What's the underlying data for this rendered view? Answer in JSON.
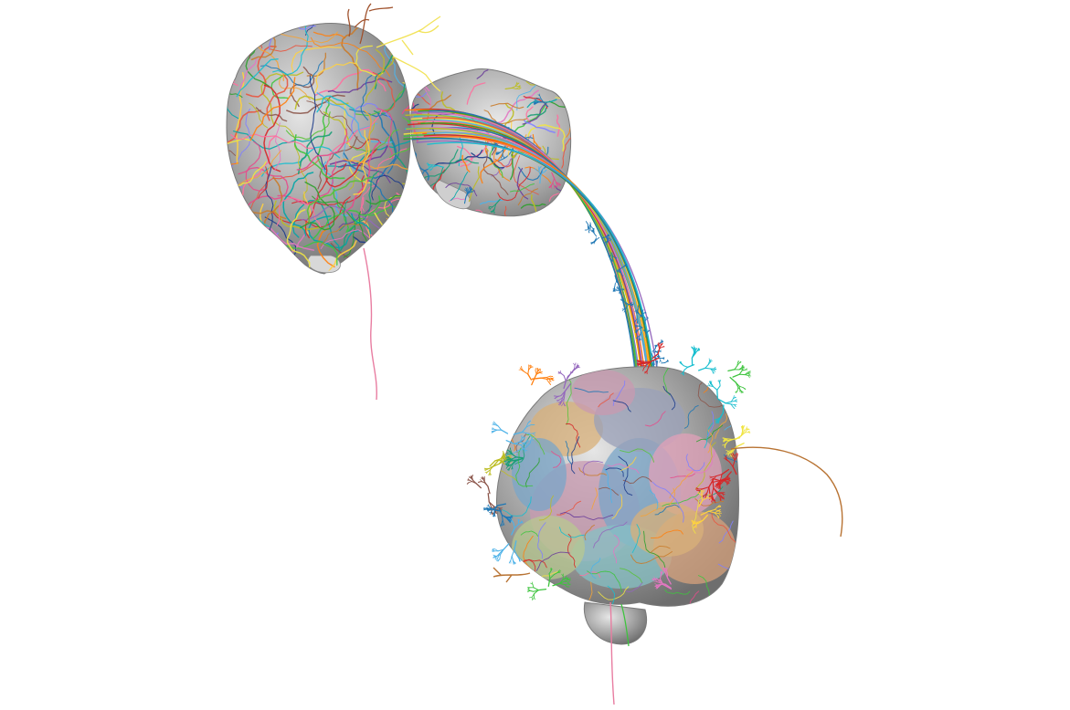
{
  "viewport": {
    "background": "#ffffff"
  },
  "meshes": {
    "surface_color": "#a6a6a6",
    "highlight_color": "#e6e6e6",
    "shadow_color": "#6e6e6e"
  },
  "region_colors": [
    "#c89ab0",
    "#7aa6c8",
    "#d8b07a",
    "#9aa0b8",
    "#e0a0b8",
    "#86c0c4",
    "#b8c890",
    "#d6a27c"
  ],
  "neuron_colors": [
    "#1f77b4",
    "#ff7f0e",
    "#2ca02c",
    "#d62728",
    "#9467bd",
    "#8c564b",
    "#e377c2",
    "#17becf",
    "#bcbd22",
    "#f0e442",
    "#3ec43e",
    "#e8553f",
    "#4fb3e8",
    "#f2a33a",
    "#6a3d9a",
    "#1a9e77",
    "#ff6f9f",
    "#00a6a6",
    "#c97b2a",
    "#7f7fff",
    "#ffd23f",
    "#e64b8b",
    "#1b3a8a",
    "#59c23a"
  ],
  "axon_bundle_colors": [
    "#d62728",
    "#ff7f0e",
    "#2ca02c",
    "#1f77b4",
    "#9467bd",
    "#17becf",
    "#e377c2",
    "#bcbd22",
    "#f0e442",
    "#e8553f",
    "#3ec43e",
    "#ffb000",
    "#4fb3e8",
    "#ff6f9f"
  ],
  "projection_colors": {
    "descending_left": "#e87da1",
    "descending_bottom": "#e87da1",
    "right_branch": "#b87333",
    "lower_left_branch": "#b87333",
    "top_branch_brown": "#a0522d",
    "top_branch_yellow": "#f2e35a",
    "bottom_green": "#3ec43e"
  }
}
